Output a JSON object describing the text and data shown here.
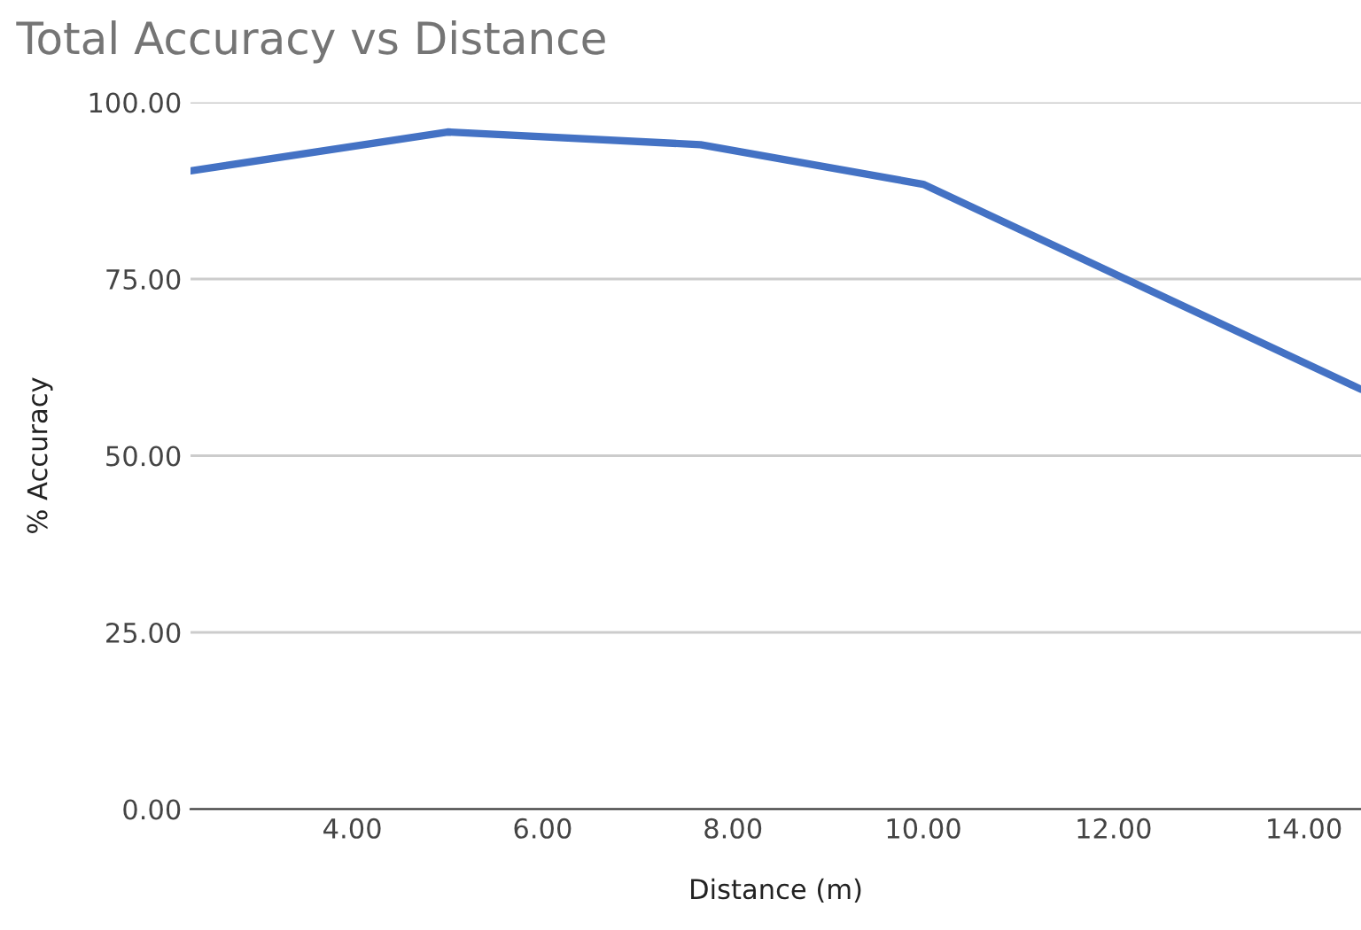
{
  "chart_data": {
    "type": "line",
    "title": "Total Accuracy vs Distance",
    "xlabel": "Distance (m)",
    "ylabel": "% Accuracy",
    "x": [
      2.3,
      5.0,
      7.66,
      10.0,
      14.6
    ],
    "series": [
      {
        "color": "#4472c4",
        "values": [
          90.3,
          95.8,
          94.0,
          88.4,
          59.4
        ]
      }
    ],
    "xlim": [
      2.3,
      14.6
    ],
    "xticks": [
      {
        "value": 4,
        "label": "4.00"
      },
      {
        "value": 6,
        "label": "6.00"
      },
      {
        "value": 8,
        "label": "8.00"
      },
      {
        "value": 10,
        "label": "10.00"
      },
      {
        "value": 12,
        "label": "12.00"
      },
      {
        "value": 14,
        "label": "14.00"
      }
    ],
    "ylim": [
      0,
      100
    ],
    "yticks": [
      {
        "value": 0,
        "label": "0.00"
      },
      {
        "value": 25,
        "label": "25.00"
      },
      {
        "value": 50,
        "label": "50.00"
      },
      {
        "value": 75,
        "label": "75.00"
      },
      {
        "value": 100,
        "label": "100.00"
      }
    ],
    "grid": "y",
    "marker": "none",
    "line_style": "solid"
  }
}
